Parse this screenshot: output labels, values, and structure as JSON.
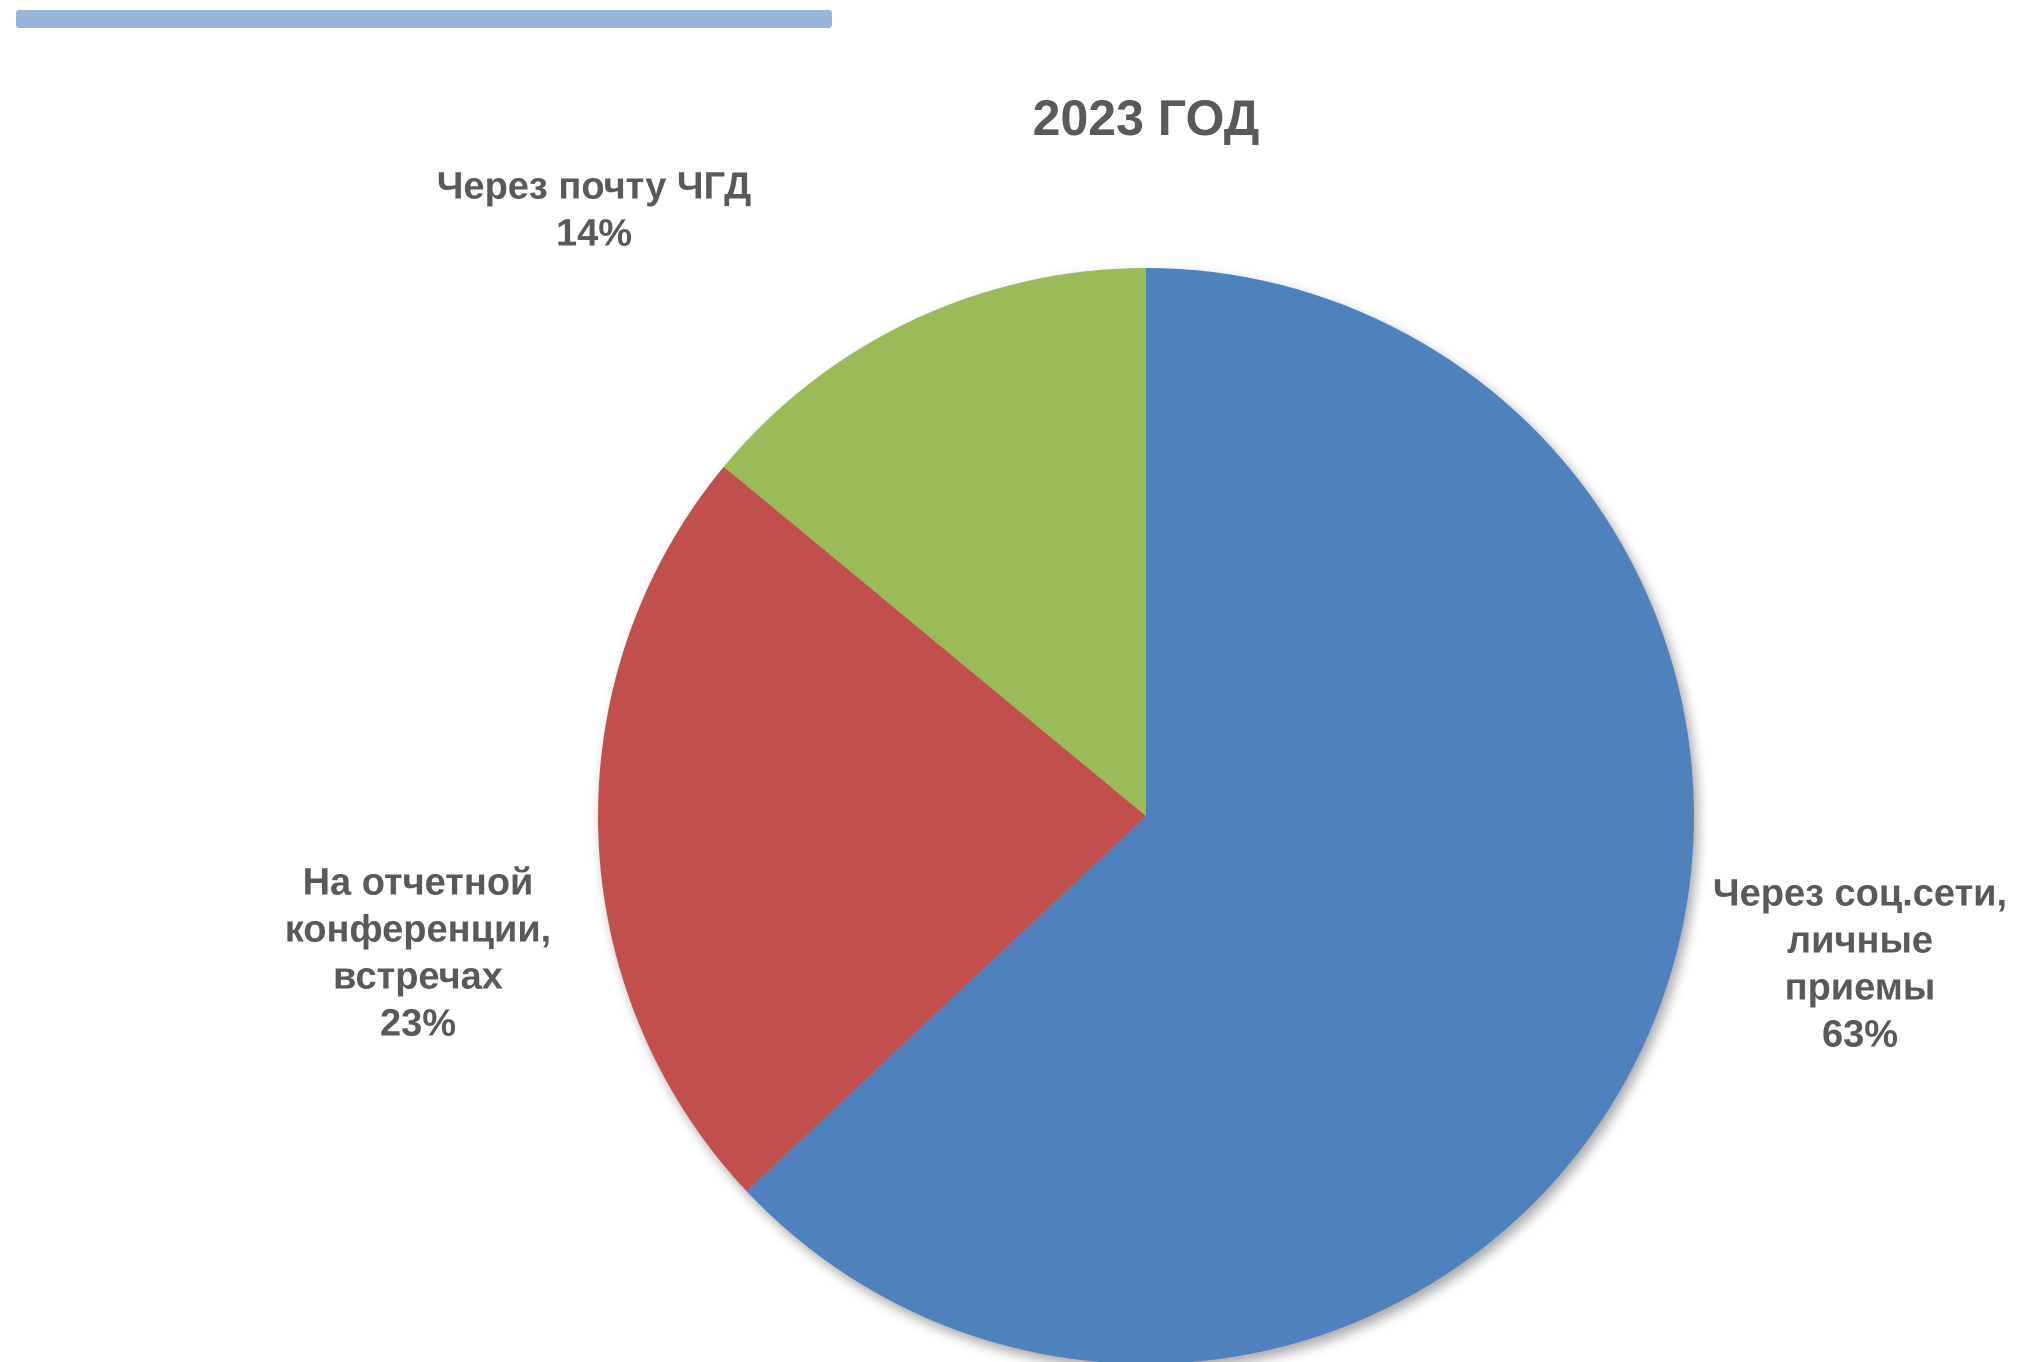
{
  "decor": {
    "top_bar_color": "#98B4DA"
  },
  "chart_data": {
    "type": "pie",
    "title": "2023 ГОД",
    "slices": [
      {
        "label_lines": [
          "Через соц.сети,",
          "личные",
          "приемы"
        ],
        "percent_label": "63%",
        "value": 63,
        "color": "#4F81BD"
      },
      {
        "label_lines": [
          "На отчетной",
          "конференции,",
          "встречах"
        ],
        "percent_label": "23%",
        "value": 23,
        "color": "#C0504D"
      },
      {
        "label_lines": [
          "Через почту ЧГД"
        ],
        "percent_label": "14%",
        "value": 14,
        "color": "#9BBB59"
      }
    ],
    "start_angle_deg": 0,
    "direction": "clockwise",
    "legend": "none"
  }
}
